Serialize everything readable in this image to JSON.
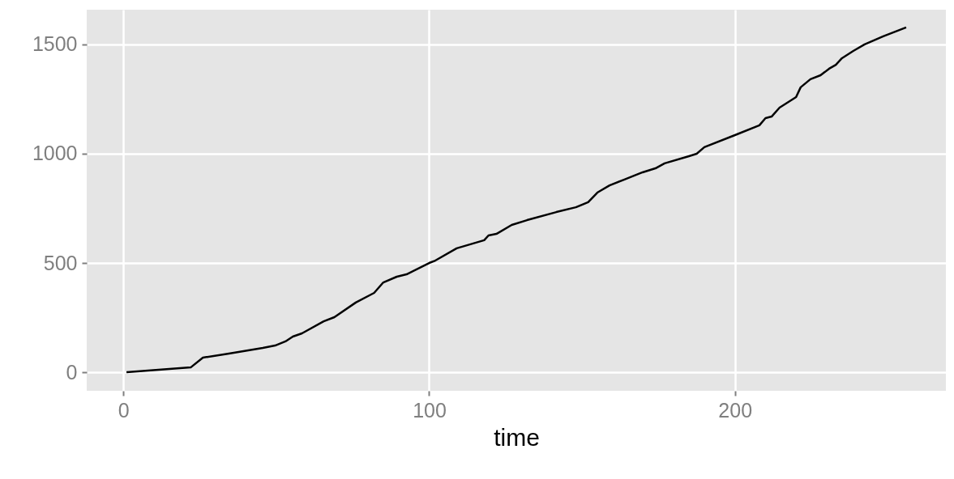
{
  "chart_data": {
    "type": "line",
    "xlabel": "time",
    "xlim": [
      -12,
      269
    ],
    "xticks": [
      0,
      100,
      200
    ],
    "ylim": [
      -85,
      1659
    ],
    "yticks": [
      0,
      500,
      1000,
      1500
    ],
    "grid": true,
    "series": [
      {
        "color": "#000000",
        "x": [
          1,
          22,
          26,
          34.5,
          45.6,
          49.6,
          53,
          55.4,
          58.4,
          65.5,
          69,
          76,
          82,
          85,
          89.4,
          92.6,
          100,
          102,
          109,
          118,
          119.4,
          122,
          127,
          132,
          141.6,
          148,
          152,
          155,
          159,
          163.7,
          169.8,
          174,
          177,
          185,
          187.5,
          190,
          200,
          208,
          210,
          212,
          214.6,
          220,
          221.5,
          224.7,
          228,
          230.8,
          233,
          235,
          238.7,
          242.4,
          248.5,
          256
        ],
        "values": [
          0,
          22,
          67,
          85,
          111,
          122,
          141,
          163,
          178,
          233,
          252,
          319,
          363,
          411,
          437,
          448,
          500,
          511,
          567,
          604,
          626,
          633,
          674,
          696,
          733,
          755,
          778,
          822,
          855,
          881,
          915,
          933,
          956,
          989,
          1000,
          1030,
          1085,
          1130,
          1163,
          1170,
          1211,
          1259,
          1304,
          1341,
          1359,
          1389,
          1407,
          1437,
          1470,
          1500,
          1537,
          1578
        ]
      }
    ]
  }
}
